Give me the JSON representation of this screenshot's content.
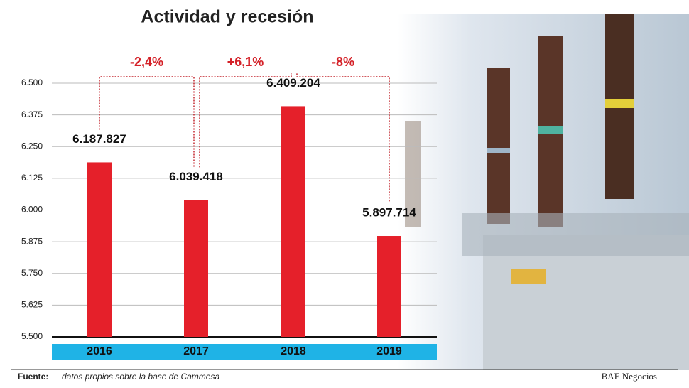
{
  "chart_data": {
    "type": "bar",
    "title": "Actividad y recesión",
    "categories": [
      "2016",
      "2017",
      "2018",
      "2019"
    ],
    "values": [
      6187.827,
      6039.418,
      6409.204,
      5897.714
    ],
    "value_labels": [
      "6.187.827",
      "6.039.418",
      "6.409.204",
      "5.897.714"
    ],
    "color": "#e5202a",
    "ylim": [
      5500,
      6500
    ],
    "yticks": [
      {
        "value": 5500,
        "label": "5.500"
      },
      {
        "value": 5625,
        "label": "5.625"
      },
      {
        "value": 5750,
        "label": "5.750"
      },
      {
        "value": 5875,
        "label": "5.875"
      },
      {
        "value": 6000,
        "label": "6.000"
      },
      {
        "value": 6125,
        "label": "6.125"
      },
      {
        "value": 6250,
        "label": "6.250"
      },
      {
        "value": 6375,
        "label": "6.375"
      },
      {
        "value": 6500,
        "label": "6.500"
      }
    ],
    "grid": true,
    "annotations": [
      "-2,4%",
      "+6,1%",
      "-8%"
    ],
    "source_label": "Fuente:",
    "source": "datos propios sobre la base de Cammesa",
    "credit": "BAE Negocios"
  }
}
